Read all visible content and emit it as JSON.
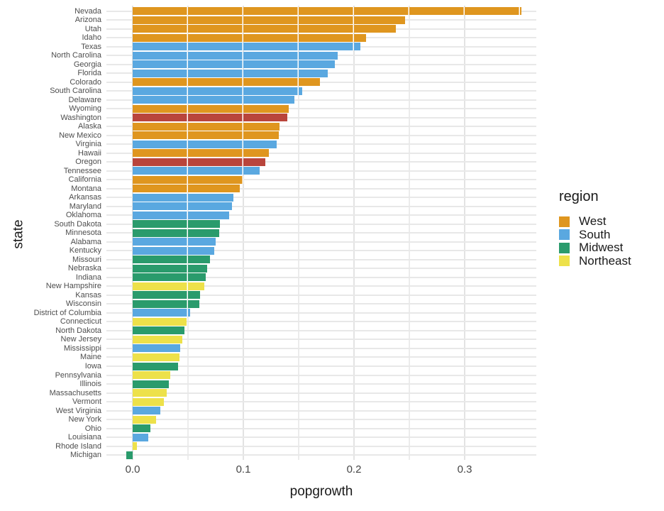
{
  "chart_data": {
    "type": "bar",
    "orientation": "horizontal",
    "xlabel": "popgrowth",
    "ylabel": "state",
    "xlim": [
      -0.024,
      0.365
    ],
    "x_tick_values": [
      0.0,
      0.1,
      0.2,
      0.3
    ],
    "x_tick_labels": [
      "0.0",
      "0.1",
      "0.2",
      "0.3"
    ],
    "gridline_step": 0.05,
    "legend_position": "right",
    "region_colors": {
      "West": "#df961f",
      "South": "#5aa8e0",
      "Midwest": "#2a9b6c",
      "Northeast": "#ede14a"
    },
    "highlight_color": "#b9453c",
    "highlighted_states": [
      "Washington",
      "Oregon"
    ],
    "bars": [
      {
        "state": "Nevada",
        "popgrowth": 0.351,
        "region": "West"
      },
      {
        "state": "Arizona",
        "popgrowth": 0.246,
        "region": "West"
      },
      {
        "state": "Utah",
        "popgrowth": 0.238,
        "region": "West"
      },
      {
        "state": "Idaho",
        "popgrowth": 0.211,
        "region": "West"
      },
      {
        "state": "Texas",
        "popgrowth": 0.206,
        "region": "South"
      },
      {
        "state": "North Carolina",
        "popgrowth": 0.185,
        "region": "South"
      },
      {
        "state": "Georgia",
        "popgrowth": 0.183,
        "region": "South"
      },
      {
        "state": "Florida",
        "popgrowth": 0.176,
        "region": "South"
      },
      {
        "state": "Colorado",
        "popgrowth": 0.169,
        "region": "West"
      },
      {
        "state": "South Carolina",
        "popgrowth": 0.153,
        "region": "South"
      },
      {
        "state": "Delaware",
        "popgrowth": 0.146,
        "region": "South"
      },
      {
        "state": "Wyoming",
        "popgrowth": 0.141,
        "region": "West"
      },
      {
        "state": "Washington",
        "popgrowth": 0.14,
        "region": "West",
        "highlight": true
      },
      {
        "state": "Alaska",
        "popgrowth": 0.133,
        "region": "West"
      },
      {
        "state": "New Mexico",
        "popgrowth": 0.132,
        "region": "West"
      },
      {
        "state": "Virginia",
        "popgrowth": 0.13,
        "region": "South"
      },
      {
        "state": "Hawaii",
        "popgrowth": 0.123,
        "region": "West"
      },
      {
        "state": "Oregon",
        "popgrowth": 0.12,
        "region": "West",
        "highlight": true
      },
      {
        "state": "Tennessee",
        "popgrowth": 0.115,
        "region": "South"
      },
      {
        "state": "California",
        "popgrowth": 0.1,
        "region": "West"
      },
      {
        "state": "Montana",
        "popgrowth": 0.097,
        "region": "West"
      },
      {
        "state": "Arkansas",
        "popgrowth": 0.091,
        "region": "South"
      },
      {
        "state": "Maryland",
        "popgrowth": 0.09,
        "region": "South"
      },
      {
        "state": "Oklahoma",
        "popgrowth": 0.087,
        "region": "South"
      },
      {
        "state": "South Dakota",
        "popgrowth": 0.079,
        "region": "Midwest"
      },
      {
        "state": "Minnesota",
        "popgrowth": 0.078,
        "region": "Midwest"
      },
      {
        "state": "Alabama",
        "popgrowth": 0.075,
        "region": "South"
      },
      {
        "state": "Kentucky",
        "popgrowth": 0.074,
        "region": "South"
      },
      {
        "state": "Missouri",
        "popgrowth": 0.07,
        "region": "Midwest"
      },
      {
        "state": "Nebraska",
        "popgrowth": 0.067,
        "region": "Midwest"
      },
      {
        "state": "Indiana",
        "popgrowth": 0.066,
        "region": "Midwest"
      },
      {
        "state": "New Hampshire",
        "popgrowth": 0.065,
        "region": "Northeast"
      },
      {
        "state": "Kansas",
        "popgrowth": 0.061,
        "region": "Midwest"
      },
      {
        "state": "Wisconsin",
        "popgrowth": 0.06,
        "region": "Midwest"
      },
      {
        "state": "District of Columbia",
        "popgrowth": 0.052,
        "region": "South"
      },
      {
        "state": "Connecticut",
        "popgrowth": 0.049,
        "region": "Northeast"
      },
      {
        "state": "North Dakota",
        "popgrowth": 0.047,
        "region": "Midwest"
      },
      {
        "state": "New Jersey",
        "popgrowth": 0.045,
        "region": "Northeast"
      },
      {
        "state": "Mississippi",
        "popgrowth": 0.043,
        "region": "South"
      },
      {
        "state": "Maine",
        "popgrowth": 0.042,
        "region": "Northeast"
      },
      {
        "state": "Iowa",
        "popgrowth": 0.041,
        "region": "Midwest"
      },
      {
        "state": "Pennsylvania",
        "popgrowth": 0.034,
        "region": "Northeast"
      },
      {
        "state": "Illinois",
        "popgrowth": 0.033,
        "region": "Midwest"
      },
      {
        "state": "Massachusetts",
        "popgrowth": 0.031,
        "region": "Northeast"
      },
      {
        "state": "Vermont",
        "popgrowth": 0.028,
        "region": "Northeast"
      },
      {
        "state": "West Virginia",
        "popgrowth": 0.025,
        "region": "South"
      },
      {
        "state": "New York",
        "popgrowth": 0.021,
        "region": "Northeast"
      },
      {
        "state": "Ohio",
        "popgrowth": 0.016,
        "region": "Midwest"
      },
      {
        "state": "Louisiana",
        "popgrowth": 0.014,
        "region": "South"
      },
      {
        "state": "Rhode Island",
        "popgrowth": 0.004,
        "region": "Northeast"
      },
      {
        "state": "Michigan",
        "popgrowth": -0.006,
        "region": "Midwest"
      }
    ]
  },
  "axes": {
    "x_title": "popgrowth",
    "y_title": "state"
  },
  "legend": {
    "title": "region",
    "items": [
      {
        "label": "West",
        "color": "#df961f"
      },
      {
        "label": "South",
        "color": "#5aa8e0"
      },
      {
        "label": "Midwest",
        "color": "#2a9b6c"
      },
      {
        "label": "Northeast",
        "color": "#ede14a"
      }
    ]
  }
}
